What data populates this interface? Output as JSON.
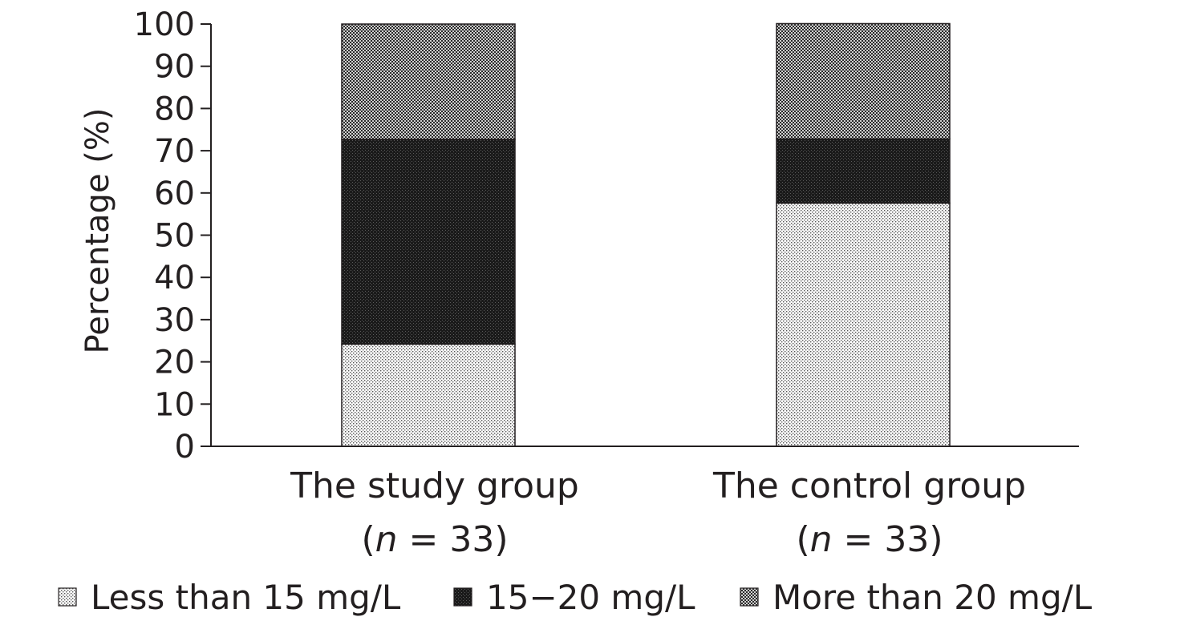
{
  "chart_data": {
    "type": "bar",
    "stacked": true,
    "categories": [
      "The study group",
      "The control group"
    ],
    "category_sublabels": [
      "(n = 33)",
      "(n = 33)"
    ],
    "ylabel": "Percentage (%)",
    "ylim": [
      0,
      100
    ],
    "yticks": [
      0,
      10,
      20,
      30,
      40,
      50,
      60,
      70,
      80,
      90,
      100
    ],
    "grid": false,
    "legend_position": "bottom",
    "series": [
      {
        "name": "Less than 15 mg/L",
        "values": [
          24.2,
          57.6
        ],
        "pattern": "light-dots",
        "color": "#e6e6e6"
      },
      {
        "name": "15−20 mg/L",
        "values": [
          48.5,
          15.2
        ],
        "pattern": "dark-dots",
        "color": "#222222"
      },
      {
        "name": "More than 20 mg/L",
        "values": [
          27.3,
          27.3
        ],
        "pattern": "medium-dots",
        "color": "#8c8c8c"
      }
    ]
  }
}
